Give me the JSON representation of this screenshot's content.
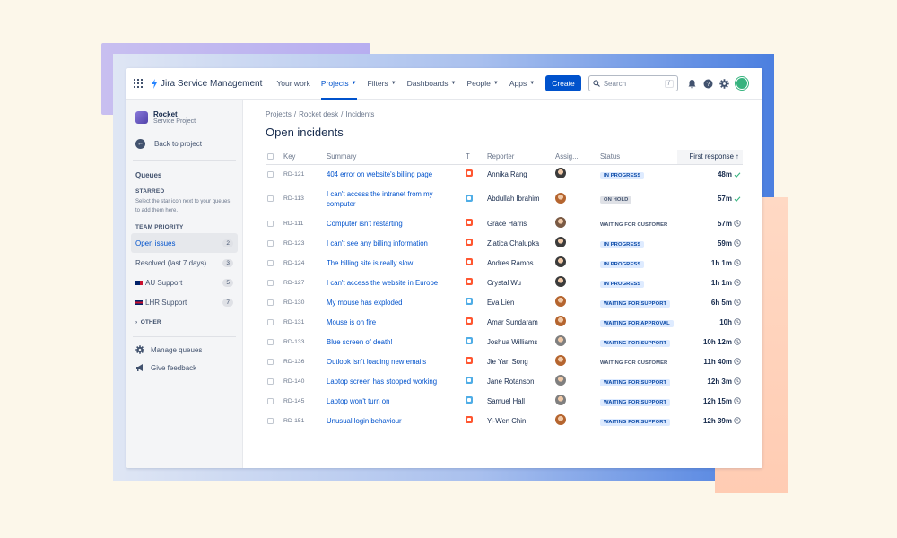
{
  "nav": {
    "brand": "Jira Service Management",
    "items": [
      {
        "label": "Your work",
        "dropdown": false,
        "active": false
      },
      {
        "label": "Projects",
        "dropdown": true,
        "active": true
      },
      {
        "label": "Filters",
        "dropdown": true,
        "active": false
      },
      {
        "label": "Dashboards",
        "dropdown": true,
        "active": false
      },
      {
        "label": "People",
        "dropdown": true,
        "active": false
      },
      {
        "label": "Apps",
        "dropdown": true,
        "active": false
      }
    ],
    "create_label": "Create",
    "search_placeholder": "Search",
    "search_shortcut": "/"
  },
  "sidebar": {
    "project_name": "Rocket",
    "project_type": "Service Project",
    "back_label": "Back to project",
    "queues_title": "Queues",
    "starred_label": "STARRED",
    "starred_hint": "Select the star icon next to your queues to add them here.",
    "team_priority_label": "TEAM PRIORITY",
    "queues": [
      {
        "label": "Open issues",
        "count": "2",
        "flag": "",
        "active": true
      },
      {
        "label": "Resolved (last 7 days)",
        "count": "3",
        "flag": "",
        "active": false
      },
      {
        "label": "AU Support",
        "count": "5",
        "flag": "au",
        "active": false
      },
      {
        "label": "LHR Support",
        "count": "7",
        "flag": "uk",
        "active": false
      }
    ],
    "other_label": "OTHER",
    "manage_label": "Manage queues",
    "feedback_label": "Give feedback"
  },
  "breadcrumb": [
    "Projects",
    "/",
    "Rocket desk",
    "/",
    "Incidents"
  ],
  "page_title": "Open incidents",
  "table": {
    "headers": {
      "key": "Key",
      "summary": "Summary",
      "type": "T",
      "reporter": "Reporter",
      "assignee": "Assig...",
      "status": "Status",
      "first_response": "First response"
    },
    "sort_indicator": "↑",
    "rows": [
      {
        "key": "RD-121",
        "summary": "404 error on website's billing page",
        "type": "incident",
        "reporter": "Annika Rang",
        "assignee_color": "#3b3b3b",
        "status": "IN PROGRESS",
        "status_style": "blue",
        "response": "48m",
        "response_icon": "check"
      },
      {
        "key": "RD-113",
        "summary": "I can't access the intranet from my computer",
        "type": "service",
        "reporter": "Abdullah Ibrahim",
        "assignee_color": "#b5652f",
        "status": "ON HOLD",
        "status_style": "grey",
        "response": "57m",
        "response_icon": "check"
      },
      {
        "key": "RD-111",
        "summary": "Computer isn't restarting",
        "type": "incident",
        "reporter": "Grace Harris",
        "assignee_color": "#7a5a44",
        "status": "WAITING FOR CUSTOMER",
        "status_style": "white",
        "response": "57m",
        "response_icon": "clock"
      },
      {
        "key": "RD-123",
        "summary": "I can't see any billing information",
        "type": "incident",
        "reporter": "Zlatica Chalupka",
        "assignee_color": "#3b3b3b",
        "status": "IN PROGRESS",
        "status_style": "blue",
        "response": "59m",
        "response_icon": "clock"
      },
      {
        "key": "RD-124",
        "summary": "The billing site is really slow",
        "type": "incident",
        "reporter": "Andres Ramos",
        "assignee_color": "#3b3b3b",
        "status": "IN PROGRESS",
        "status_style": "blue",
        "response": "1h 1m",
        "response_icon": "clock"
      },
      {
        "key": "RD-127",
        "summary": "I can't access the website in Europe",
        "type": "incident",
        "reporter": "Crystal Wu",
        "assignee_color": "#3b3b3b",
        "status": "IN PROGRESS",
        "status_style": "blue",
        "response": "1h 1m",
        "response_icon": "clock"
      },
      {
        "key": "RD-130",
        "summary": "My mouse has exploded",
        "type": "service",
        "reporter": "Eva Lien",
        "assignee_color": "#b5652f",
        "status": "WAITING FOR SUPPORT",
        "status_style": "blue",
        "response": "6h 5m",
        "response_icon": "clock"
      },
      {
        "key": "RD-131",
        "summary": "Mouse is on fire",
        "type": "incident",
        "reporter": "Amar Sundaram",
        "assignee_color": "#b5652f",
        "status": "WAITING FOR APPROVAL",
        "status_style": "blue",
        "response": "10h",
        "response_icon": "clock"
      },
      {
        "key": "RD-133",
        "summary": "Blue screen of death!",
        "type": "service",
        "reporter": "Joshua Williams",
        "assignee_color": "#7f7f7f",
        "status": "WAITING FOR SUPPORT",
        "status_style": "blue",
        "response": "10h 12m",
        "response_icon": "clock"
      },
      {
        "key": "RD-136",
        "summary": "Outlook isn't loading new emails",
        "type": "incident",
        "reporter": "Jie Yan Song",
        "assignee_color": "#b5652f",
        "status": "WAITING FOR CUSTOMER",
        "status_style": "white",
        "response": "11h 40m",
        "response_icon": "clock"
      },
      {
        "key": "RD-140",
        "summary": "Laptop screen has stopped working",
        "type": "service",
        "reporter": "Jane Rotanson",
        "assignee_color": "#7f7f7f",
        "status": "WAITING FOR SUPPORT",
        "status_style": "blue",
        "response": "12h 3m",
        "response_icon": "clock"
      },
      {
        "key": "RD-145",
        "summary": "Laptop won't turn on",
        "type": "service",
        "reporter": "Samuel Hall",
        "assignee_color": "#7f7f7f",
        "status": "WAITING FOR SUPPORT",
        "status_style": "blue",
        "response": "12h 15m",
        "response_icon": "clock"
      },
      {
        "key": "RD-151",
        "summary": "Unusual login behaviour",
        "type": "incident",
        "reporter": "Yi-Wen Chin",
        "assignee_color": "#b5652f",
        "status": "WAITING FOR SUPPORT",
        "status_style": "blue",
        "response": "12h 39m",
        "response_icon": "clock"
      }
    ]
  },
  "colors": {
    "accent": "#0052cc",
    "incident": "#ff5630",
    "service": "#4fade6"
  }
}
